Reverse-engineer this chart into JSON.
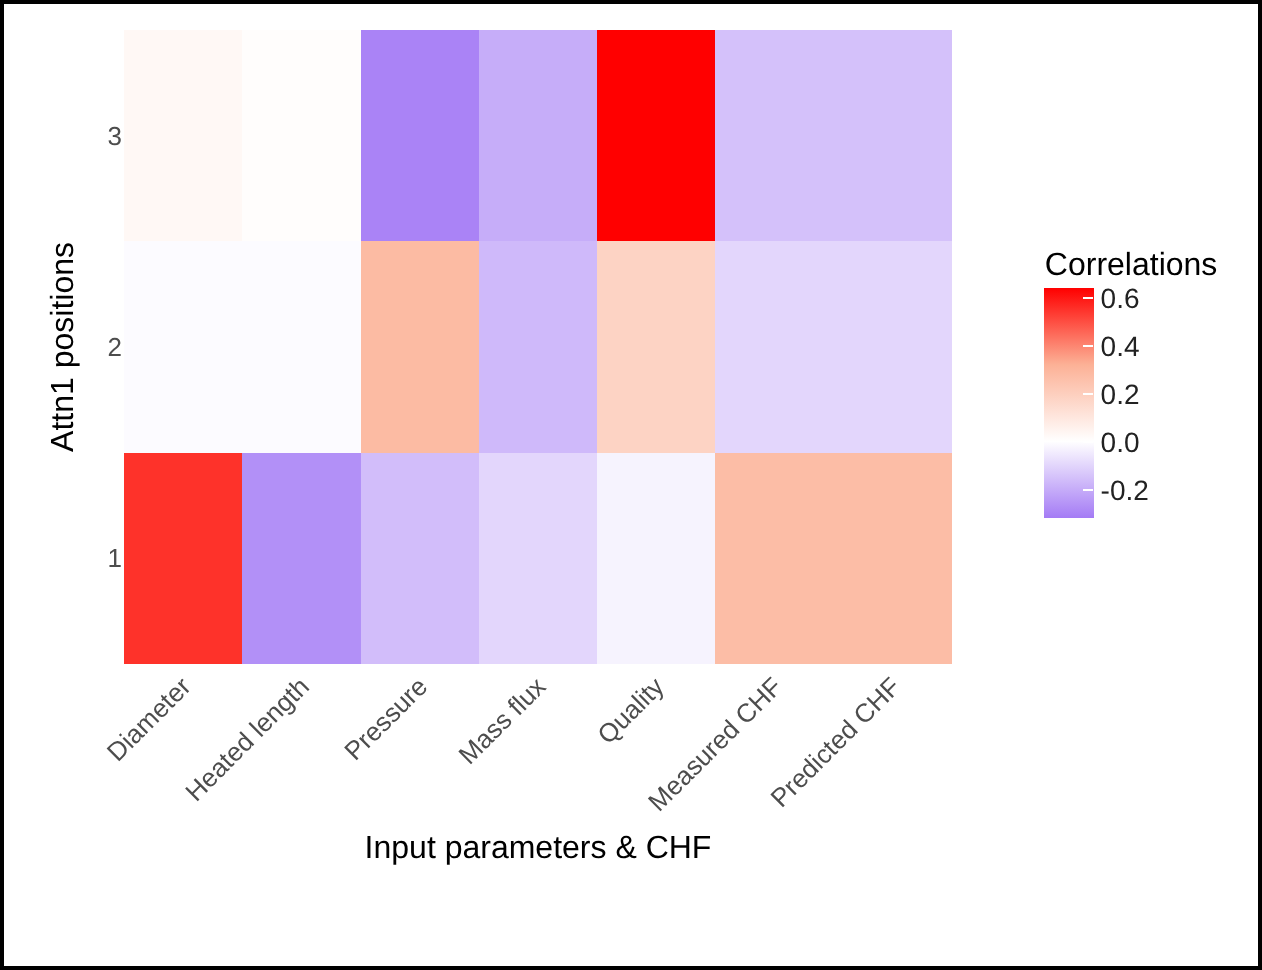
{
  "chart_data": {
    "type": "heatmap",
    "xlabel": "Input parameters & CHF",
    "ylabel": "Attn1 positions",
    "legend_title": "Correlations",
    "categories": [
      "Diameter",
      "Heated length",
      "Pressure",
      "Mass flux",
      "Quality",
      "Measured CHF",
      "Predicted CHF"
    ],
    "y_categories": [
      "3",
      "2",
      "1"
    ],
    "cells": [
      [
        0.03,
        0.01,
        -0.3,
        -0.2,
        0.64,
        -0.15,
        -0.15
      ],
      [
        -0.01,
        -0.01,
        0.28,
        -0.17,
        0.18,
        -0.1,
        -0.1
      ],
      [
        0.55,
        -0.27,
        -0.16,
        -0.1,
        -0.03,
        0.27,
        0.27
      ]
    ],
    "colors": [
      "#a47bf5",
      "#ffffff",
      "#fcb196",
      "#ff0000"
    ],
    "clim": [
      -0.32,
      0.64
    ],
    "cticks": [
      {
        "value": -0.2,
        "label": "-0.2"
      },
      {
        "value": 0,
        "label": "0.0"
      },
      {
        "value": 0.2,
        "label": "0.2"
      },
      {
        "value": 0.4,
        "label": "0.4"
      },
      {
        "value": 0.6,
        "label": "0.6"
      }
    ]
  }
}
